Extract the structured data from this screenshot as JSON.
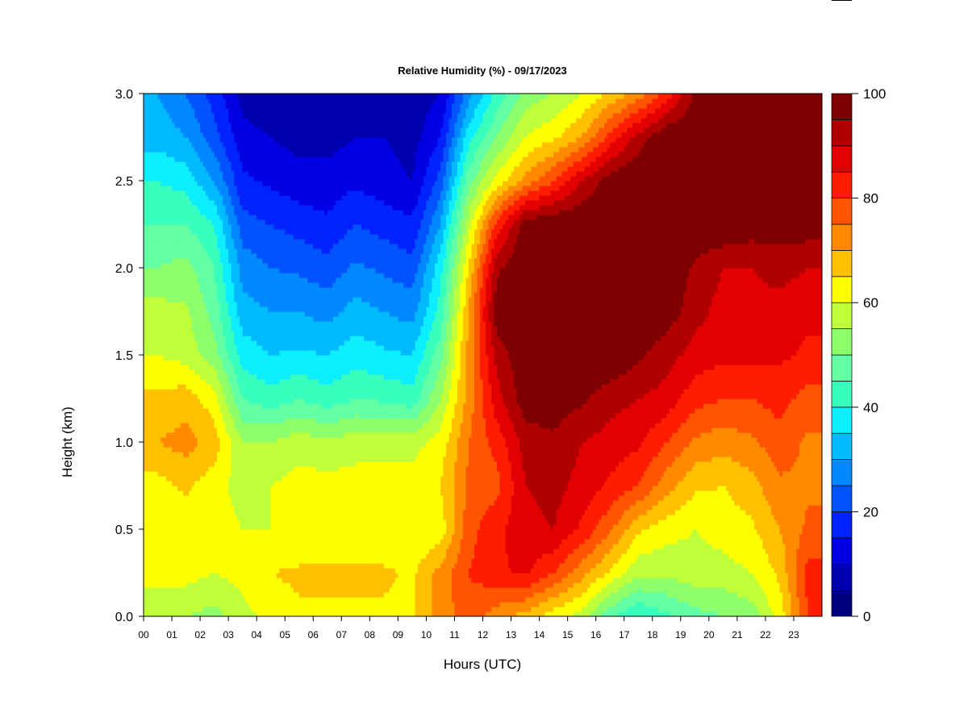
{
  "chart_data": {
    "type": "heatmap",
    "title": "Relative Humidity (%) - 09/17/2023",
    "xlabel": "Hours (UTC)",
    "ylabel": "Height (km)",
    "x_categories": [
      "00",
      "01",
      "02",
      "03",
      "04",
      "05",
      "06",
      "07",
      "08",
      "09",
      "10",
      "11",
      "12",
      "13",
      "14",
      "15",
      "16",
      "17",
      "18",
      "19",
      "20",
      "21",
      "22",
      "23"
    ],
    "xlim": [
      0,
      24
    ],
    "ylim": [
      0,
      3.0
    ],
    "y_ticks": [
      "0.0",
      "0.5",
      "1.0",
      "1.5",
      "2.0",
      "2.5",
      "3.0"
    ],
    "y_levels_km": [
      0.0,
      0.25,
      0.5,
      0.75,
      1.0,
      1.25,
      1.5,
      1.75,
      2.0,
      2.25,
      2.5,
      2.75,
      3.0
    ],
    "value_range": [
      0,
      100
    ],
    "colorbar_ticks": [
      "0",
      "20",
      "40",
      "60",
      "80",
      "100"
    ],
    "colormap": [
      "#00007f",
      "#0000b0",
      "#0000e3",
      "#0022ff",
      "#0054ff",
      "#0088ff",
      "#00baff",
      "#0deefe",
      "#39ffbd",
      "#62ffa5",
      "#8cff6b",
      "#beff3a",
      "#ffff00",
      "#ffc000",
      "#ff8a00",
      "#ff5400",
      "#ff1d00",
      "#e30000",
      "#b10000",
      "#7f0000"
    ],
    "hourly_rh": [
      [
        55,
        62,
        60,
        63,
        70,
        66,
        60,
        57,
        50,
        45,
        40,
        33,
        30
      ],
      [
        55,
        62,
        62,
        66,
        72,
        68,
        58,
        56,
        52,
        45,
        38,
        30,
        25
      ],
      [
        53,
        60,
        62,
        62,
        68,
        62,
        52,
        48,
        45,
        40,
        30,
        22,
        18
      ],
      [
        58,
        62,
        60,
        58,
        55,
        45,
        38,
        32,
        28,
        22,
        16,
        12,
        8
      ],
      [
        62,
        65,
        60,
        60,
        55,
        42,
        35,
        30,
        25,
        20,
        14,
        10,
        6
      ],
      [
        64,
        66,
        60,
        62,
        58,
        45,
        36,
        30,
        24,
        18,
        12,
        8,
        5
      ],
      [
        64,
        66,
        60,
        62,
        56,
        42,
        35,
        28,
        22,
        16,
        12,
        8,
        5
      ],
      [
        64,
        66,
        60,
        62,
        58,
        45,
        38,
        32,
        26,
        20,
        14,
        10,
        6
      ],
      [
        64,
        66,
        60,
        62,
        58,
        44,
        36,
        30,
        24,
        18,
        12,
        10,
        8
      ],
      [
        64,
        64,
        60,
        62,
        58,
        42,
        35,
        28,
        22,
        16,
        10,
        8,
        6
      ],
      [
        72,
        72,
        62,
        65,
        62,
        55,
        48,
        42,
        38,
        30,
        22,
        15,
        10
      ],
      [
        78,
        80,
        78,
        76,
        75,
        72,
        72,
        70,
        65,
        58,
        48,
        38,
        28
      ],
      [
        72,
        84,
        84,
        78,
        82,
        88,
        92,
        98,
        94,
        82,
        62,
        50,
        42
      ],
      [
        68,
        86,
        88,
        90,
        92,
        98,
        99,
        100,
        100,
        98,
        72,
        60,
        52
      ],
      [
        62,
        80,
        90,
        92,
        94,
        98,
        100,
        100,
        100,
        100,
        80,
        64,
        55
      ],
      [
        58,
        72,
        84,
        88,
        90,
        96,
        100,
        100,
        100,
        100,
        90,
        70,
        60
      ],
      [
        46,
        64,
        76,
        84,
        88,
        92,
        100,
        100,
        100,
        100,
        98,
        82,
        66
      ],
      [
        40,
        56,
        66,
        80,
        86,
        90,
        96,
        100,
        100,
        100,
        100,
        92,
        72
      ],
      [
        44,
        56,
        62,
        72,
        80,
        88,
        92,
        98,
        100,
        100,
        100,
        100,
        82
      ],
      [
        48,
        58,
        60,
        66,
        74,
        82,
        88,
        92,
        94,
        100,
        100,
        100,
        96
      ],
      [
        50,
        58,
        62,
        65,
        72,
        80,
        86,
        88,
        90,
        100,
        100,
        100,
        100
      ],
      [
        52,
        60,
        64,
        68,
        74,
        80,
        86,
        88,
        90,
        98,
        100,
        100,
        100
      ],
      [
        62,
        66,
        70,
        74,
        78,
        82,
        86,
        88,
        92,
        98,
        100,
        100,
        100
      ],
      [
        80,
        82,
        76,
        74,
        74,
        78,
        84,
        86,
        90,
        98,
        100,
        100,
        100
      ]
    ]
  }
}
